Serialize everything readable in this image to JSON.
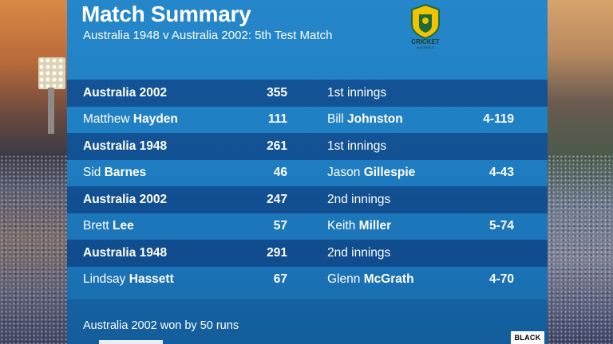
{
  "header": {
    "title": "Match Summary",
    "subtitle": "Australia 1948 v Australia 2002:  5th Test Match"
  },
  "logo": {
    "icon": "cricket-australia-logo",
    "text": "CRICKET",
    "subtext": "AUSTRALIA",
    "colors": [
      "#f2c300",
      "#1d6b3a"
    ]
  },
  "rows": [
    {
      "type": "team",
      "c1": "Australia 2002",
      "c2": "355",
      "c3": "1st innings",
      "c4": ""
    },
    {
      "type": "player",
      "c1_first": "Matthew",
      "c1_last": "Hayden",
      "c2": "111",
      "c3_first": "Bill",
      "c3_last": "Johnston",
      "c4": "4-119"
    },
    {
      "type": "team",
      "c1": "Australia 1948",
      "c2": "261",
      "c3": "1st innings",
      "c4": ""
    },
    {
      "type": "player",
      "c1_first": "Sid",
      "c1_last": "Barnes",
      "c2": "46",
      "c3_first": "Jason",
      "c3_last": "Gillespie",
      "c4": "4-43"
    },
    {
      "type": "team",
      "c1": "Australia 2002",
      "c2": "247",
      "c3": "2nd innings",
      "c4": ""
    },
    {
      "type": "player",
      "c1_first": "Brett",
      "c1_last": "Lee",
      "c2": "57",
      "c3_first": "Keith",
      "c3_last": "Miller",
      "c4": "5-74"
    },
    {
      "type": "team",
      "c1": "Australia 1948",
      "c2": "291",
      "c3": "2nd innings",
      "c4": ""
    },
    {
      "type": "player",
      "c1_first": "Lindsay",
      "c1_last": "Hassett",
      "c2": "67",
      "c3_first": "Glenn",
      "c3_last": "McGrath",
      "c4": "4-70"
    }
  ],
  "footer": {
    "result": "Australia 2002 won by 50 runs",
    "badge": "BLACK"
  },
  "colors": {
    "panel": "#1f7fc3",
    "team_row": "#0a2d6e",
    "text": "#ffffff"
  }
}
